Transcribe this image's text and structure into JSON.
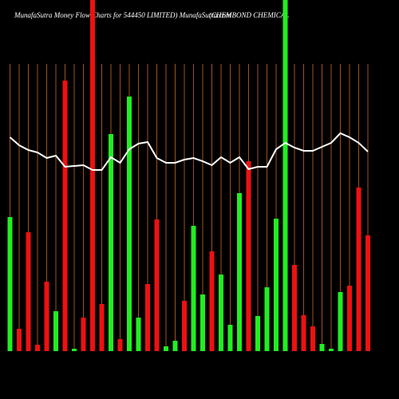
{
  "chart_data": {
    "type": "bar",
    "title": "MunafaSutra  Money Flow  Charts for 544450   LIMITED) MunafaSutra.com",
    "subtitle": "(CHEMBOND CHEMICAL",
    "series": [
      {
        "values": [
          168,
          28,
          149,
          8,
          87,
          50,
          339,
          3,
          42,
          440,
          59,
          272,
          15,
          319,
          42,
          84,
          165,
          6,
          13,
          63,
          157,
          71,
          125,
          96,
          33,
          198,
          238,
          44,
          80,
          166,
          440,
          108,
          45,
          31,
          9,
          3,
          74,
          82,
          205,
          145
        ],
        "colors": [
          "#22ee22",
          "#ee1111",
          "#ee1111",
          "#ee1111",
          "#ee1111",
          "#22ee22",
          "#ee1111",
          "#22ee22",
          "#ee1111",
          "#ee1111",
          "#ee1111",
          "#22ee22",
          "#ee1111",
          "#22ee22",
          "#22ee22",
          "#ee1111",
          "#ee1111",
          "#22ee22",
          "#22ee22",
          "#ee1111",
          "#22ee22",
          "#22ee22",
          "#ee1111",
          "#22ee22",
          "#22ee22",
          "#22ee22",
          "#ee1111",
          "#22ee22",
          "#22ee22",
          "#22ee22",
          "#22ee22",
          "#ee1111",
          "#ee1111",
          "#ee1111",
          "#22ee22",
          "#22ee22",
          "#22ee22",
          "#ee1111",
          "#ee1111",
          "#ee1111"
        ]
      },
      {
        "type": "line",
        "color": "#ffffff",
        "values": [
          268,
          258,
          252,
          249,
          242,
          245,
          231,
          232,
          233,
          227,
          227,
          243,
          236,
          253,
          260,
          262,
          242,
          236,
          236,
          240,
          242,
          238,
          233,
          243,
          236,
          243,
          228,
          231,
          231,
          253,
          261,
          255,
          251,
          251,
          256,
          261,
          273,
          268,
          261,
          250
        ]
      }
    ],
    "gridline_color": "#a0521d"
  }
}
